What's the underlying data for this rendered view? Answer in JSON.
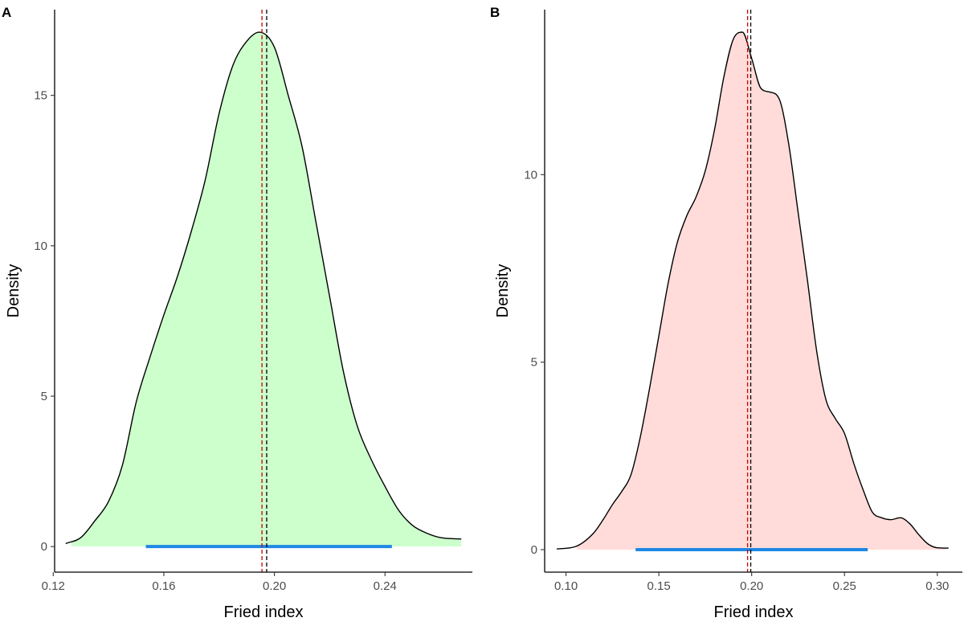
{
  "chart_data": [
    {
      "panel_label": "A",
      "type": "area",
      "title": "",
      "xlabel": "Fried index",
      "ylabel": "Density",
      "xlim": [
        0.1205,
        0.2716
      ],
      "ylim": [
        -0.85,
        17.85
      ],
      "xticks": [
        0.12,
        0.16,
        0.2,
        0.24
      ],
      "xtick_labels": [
        "0.12",
        "0.16",
        "0.20",
        "0.24"
      ],
      "yticks": [
        0,
        5,
        10,
        15
      ],
      "ytick_labels": [
        "0",
        "5",
        "10",
        "15"
      ],
      "fill_color": "#ccffcc",
      "line_color": "#000000",
      "fill_range": [
        0.1265,
        0.2676
      ],
      "density": {
        "x": [
          0.1245,
          0.13,
          0.135,
          0.14,
          0.145,
          0.15,
          0.155,
          0.16,
          0.165,
          0.17,
          0.175,
          0.18,
          0.185,
          0.19,
          0.1945,
          0.2,
          0.205,
          0.21,
          0.215,
          0.22,
          0.225,
          0.23,
          0.235,
          0.24,
          0.245,
          0.25,
          0.255,
          0.26,
          0.2676
        ],
        "y": [
          0.1,
          0.3,
          0.85,
          1.5,
          2.7,
          4.8,
          6.3,
          7.7,
          9.0,
          10.5,
          12.2,
          14.4,
          16.0,
          16.8,
          17.1,
          16.6,
          15.0,
          13.3,
          10.8,
          8.3,
          5.8,
          4.0,
          2.9,
          2.0,
          1.2,
          0.7,
          0.45,
          0.3,
          0.25
        ]
      },
      "interval": {
        "low": 0.1535,
        "high": 0.2425,
        "color": "#1e88e5"
      },
      "vlines": [
        {
          "x": 0.1955,
          "color": "#cc0000",
          "style": "dashed"
        },
        {
          "x": 0.1972,
          "color": "#000000",
          "style": "dashed"
        }
      ]
    },
    {
      "panel_label": "B",
      "type": "area",
      "title": "",
      "xlabel": "Fried index",
      "ylabel": "Density",
      "xlim": [
        0.0885,
        0.3135
      ],
      "ylim": [
        -0.6,
        14.4
      ],
      "xticks": [
        0.1,
        0.15,
        0.2,
        0.25,
        0.3
      ],
      "xtick_labels": [
        "0.10",
        "0.15",
        "0.20",
        "0.25",
        "0.30"
      ],
      "yticks": [
        0,
        5,
        10
      ],
      "ytick_labels": [
        "0",
        "5",
        "10"
      ],
      "fill_color": "#ffdcd9",
      "line_color": "#000000",
      "fill_range": [
        0.1058,
        0.3048
      ],
      "density": {
        "x": [
          0.095,
          0.105,
          0.115,
          0.12,
          0.125,
          0.13,
          0.135,
          0.14,
          0.145,
          0.15,
          0.155,
          0.16,
          0.165,
          0.17,
          0.175,
          0.18,
          0.185,
          0.19,
          0.195,
          0.2,
          0.205,
          0.21,
          0.215,
          0.22,
          0.225,
          0.23,
          0.235,
          0.24,
          0.245,
          0.25,
          0.255,
          0.26,
          0.265,
          0.27,
          0.275,
          0.28,
          0.285,
          0.29,
          0.295,
          0.3,
          0.306
        ],
        "y": [
          0.02,
          0.08,
          0.45,
          0.8,
          1.2,
          1.55,
          2.0,
          3.0,
          4.3,
          5.7,
          7.1,
          8.2,
          8.9,
          9.4,
          10.1,
          11.2,
          12.6,
          13.6,
          13.8,
          13.1,
          12.3,
          12.2,
          12.0,
          10.8,
          9.0,
          7.2,
          5.3,
          4.0,
          3.5,
          3.1,
          2.3,
          1.6,
          1.0,
          0.85,
          0.8,
          0.85,
          0.7,
          0.4,
          0.15,
          0.05,
          0.04
        ]
      },
      "interval": {
        "low": 0.1375,
        "high": 0.2625,
        "color": "#1e88e5"
      },
      "vlines": [
        {
          "x": 0.1978,
          "color": "#cc0000",
          "style": "dashed"
        },
        {
          "x": 0.1995,
          "color": "#000000",
          "style": "dashed"
        }
      ]
    }
  ]
}
